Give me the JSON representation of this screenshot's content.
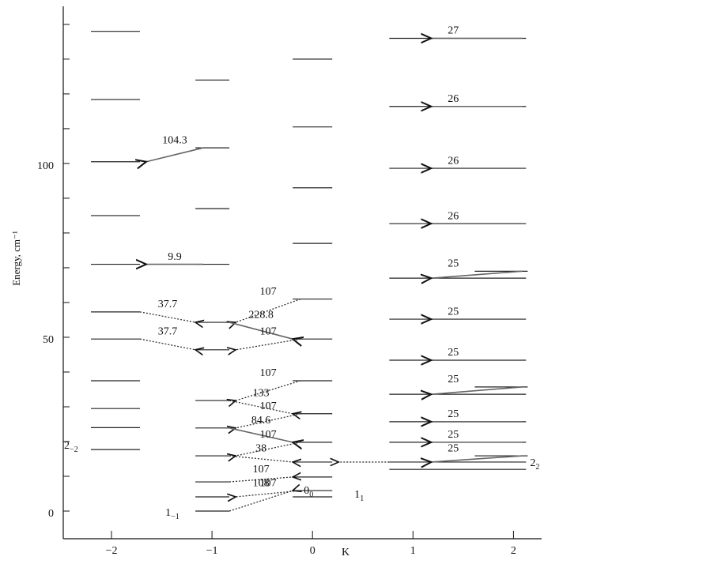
{
  "chart_data": {
    "type": "energy-levels",
    "y_label": "Energy, cm⁻¹",
    "x_label": "K",
    "xlim": [
      -2.48,
      2.28
    ],
    "ylim": [
      -7.95,
      145.2
    ],
    "xticks": [
      {
        "value": -2,
        "label": "−2"
      },
      {
        "value": -1,
        "label": "−1"
      },
      0,
      1,
      2
    ],
    "yticks": [
      0,
      50,
      100
    ],
    "y_minor_ticks": [
      10,
      20,
      30,
      40,
      60,
      70,
      80,
      90,
      110,
      120,
      130,
      140
    ],
    "columns": [
      {
        "K": -2,
        "levels": [
          138,
          118.4,
          100.5,
          85,
          71,
          57.3,
          49.5,
          37.5,
          29.5,
          24,
          17.7
        ],
        "state_label": {
          "main": "2",
          "sub": "−2"
        }
      },
      {
        "K": -1,
        "levels": [
          124,
          104.5,
          87,
          71,
          54.3,
          46.4,
          31.8,
          23.9,
          15.9,
          8.4,
          4.1,
          0
        ],
        "state_label": {
          "main": "1",
          "sub": "−1"
        }
      },
      {
        "K": 0,
        "levels": [
          130,
          110.5,
          93,
          77,
          61,
          49.5,
          37.5,
          28,
          19.8,
          14.1,
          9.8,
          5.9,
          4.1
        ],
        "state_label": {
          "main": "0",
          "sub": "0"
        }
      },
      {
        "K": 1,
        "levels": [
          136,
          116.4,
          98.6,
          82.7,
          67,
          55.2,
          43.4,
          33.6,
          25.7,
          19.8,
          14.1,
          12
        ],
        "state_label": {
          "main": "1",
          "sub": "1"
        }
      },
      {
        "K": 2,
        "levels": [
          69,
          35.7,
          15.9
        ],
        "state_label": {
          "main": "2",
          "sub": "2"
        }
      }
    ],
    "transitions": [
      {
        "from": [
          -1,
          104.5
        ],
        "to": [
          -2,
          100.5
        ],
        "value": 104.3,
        "style": "solid"
      },
      {
        "from": [
          -1,
          71
        ],
        "to": [
          -2,
          71
        ],
        "value": 9.9,
        "style": "solid"
      },
      {
        "from": [
          -2,
          57.3
        ],
        "to": [
          -1,
          54.3
        ],
        "value": 37.7,
        "style": "dotted"
      },
      {
        "from": [
          -2,
          49.5
        ],
        "to": [
          -1,
          46.4
        ],
        "value": 37.7,
        "style": "dotted"
      },
      {
        "from": [
          0,
          61
        ],
        "to": [
          -1,
          54.3
        ],
        "value": 107,
        "style": "dotted"
      },
      {
        "from": [
          -1,
          54.3
        ],
        "to": [
          0,
          49.5
        ],
        "value": 228.8,
        "style": "solid"
      },
      {
        "from": [
          0,
          49.5
        ],
        "to": [
          -1,
          46.4
        ],
        "value": 107,
        "style": "dotted"
      },
      {
        "from": [
          0,
          37.5
        ],
        "to": [
          -1,
          31.8
        ],
        "value": 107,
        "style": "dotted"
      },
      {
        "from": [
          -1,
          31.8
        ],
        "to": [
          0,
          28
        ],
        "value": 133,
        "style": "dotted"
      },
      {
        "from": [
          0,
          28
        ],
        "to": [
          -1,
          23.9
        ],
        "value": 107,
        "style": "dotted"
      },
      {
        "from": [
          -1,
          23.9
        ],
        "to": [
          0,
          19.8
        ],
        "value": 84.6,
        "style": "solid"
      },
      {
        "from": [
          0,
          19.8
        ],
        "to": [
          -1,
          15.9
        ],
        "value": 107,
        "style": "dotted"
      },
      {
        "from": [
          -1,
          15.9
        ],
        "to": [
          0,
          14.1
        ],
        "value": 38,
        "style": "dotted"
      },
      {
        "from": [
          -1,
          8.4
        ],
        "to": [
          0,
          9.8
        ],
        "value": 107,
        "style": "dotted"
      },
      {
        "from": [
          0,
          5.9
        ],
        "to": [
          -1,
          4.1
        ],
        "value": 107,
        "style": "dotted"
      },
      {
        "from": [
          -1,
          0
        ],
        "to": [
          0,
          5.9
        ],
        "value": 108,
        "style": "dotted"
      },
      {
        "from": [
          1,
          14.1
        ],
        "to": [
          0,
          14.1
        ],
        "style": "dotted"
      },
      {
        "from": [
          2,
          136
        ],
        "to": [
          1,
          136
        ],
        "value": 27,
        "style": "solid"
      },
      {
        "from": [
          2,
          116.4
        ],
        "to": [
          1,
          116.4
        ],
        "value": 26,
        "style": "solid"
      },
      {
        "from": [
          2,
          98.6
        ],
        "to": [
          1,
          98.6
        ],
        "value": 26,
        "style": "solid"
      },
      {
        "from": [
          2,
          82.7
        ],
        "to": [
          1,
          82.7
        ],
        "value": 26,
        "style": "solid"
      },
      {
        "from": [
          2,
          69
        ],
        "to": [
          1,
          67
        ],
        "value": 25,
        "style": "solid"
      },
      {
        "from": [
          2,
          55.2
        ],
        "to": [
          1,
          55.2
        ],
        "value": 25,
        "style": "solid"
      },
      {
        "from": [
          2,
          43.4
        ],
        "to": [
          1,
          43.4
        ],
        "value": 25,
        "style": "solid"
      },
      {
        "from": [
          2,
          35.7
        ],
        "to": [
          1,
          33.6
        ],
        "value": 25,
        "style": "solid"
      },
      {
        "from": [
          2,
          25.7
        ],
        "to": [
          1,
          25.7
        ],
        "value": 25,
        "style": "solid"
      },
      {
        "from": [
          2,
          19.8
        ],
        "to": [
          1,
          19.8
        ],
        "value": 25,
        "style": "solid"
      },
      {
        "from": [
          2,
          15.9
        ],
        "to": [
          1,
          14.1
        ],
        "value": 25,
        "style": "solid"
      }
    ]
  }
}
